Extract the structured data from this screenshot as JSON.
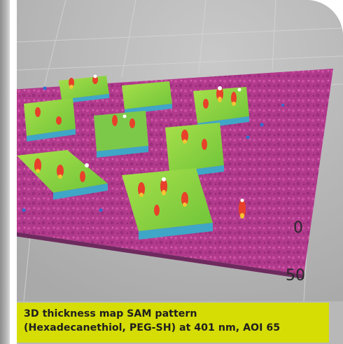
{
  "figure": {
    "axis_labels": [
      "0",
      "50"
    ]
  },
  "caption": {
    "line1": "3D thickness map SAM pattern",
    "line2": "(Hexadecanethiol, PEG-SH) at 401 nm, AOI 65"
  },
  "colors": {
    "caption_background": "#d5dd05",
    "substrate": "#b5358f",
    "pad_top": "#8fd63a",
    "pad_side": "#3fa6c8",
    "peak": "#e8402a"
  }
}
